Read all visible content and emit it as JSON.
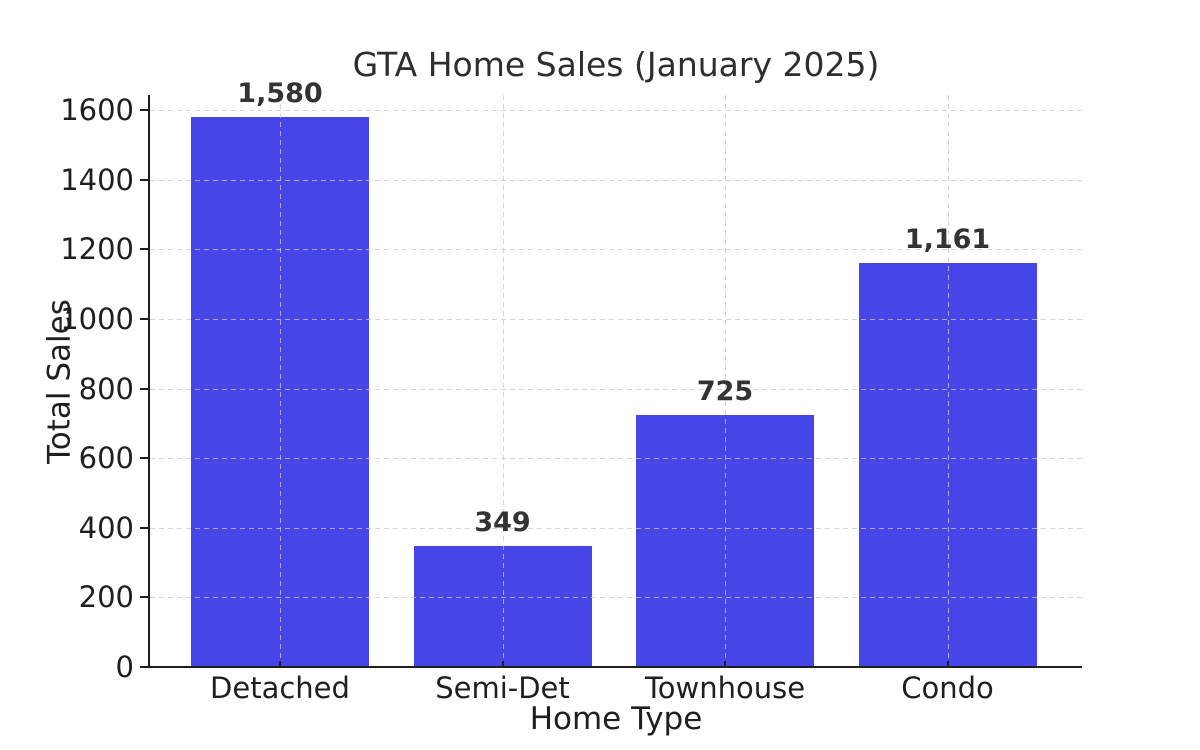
{
  "figure": {
    "background": "#ffffff"
  },
  "chart_data": {
    "type": "bar",
    "title": "GTA Home Sales (January 2025)",
    "xlabel": "Home Type",
    "ylabel": "Total Sales",
    "categories": [
      "Detached",
      "Semi-Det",
      "Townhouse",
      "Condo"
    ],
    "values": [
      1580,
      349,
      725,
      1161
    ],
    "bar_value_labels": [
      "1,580",
      "349",
      "725",
      "1,161"
    ],
    "ylim": [
      0,
      1600
    ],
    "yticks": [
      0,
      200,
      400,
      600,
      800,
      1000,
      1200,
      1400,
      1600
    ],
    "ytick_labels": [
      "0",
      "200",
      "400",
      "600",
      "800",
      "1000",
      "1200",
      "1400",
      "1600"
    ],
    "grid": "dashed-both-axes",
    "legend": "none",
    "colors": {
      "bar": "#4646e8",
      "grid": "#c8c8c8",
      "spine": "#1f1f1f",
      "tick_text": "#1f1f1f",
      "title_text": "#2e2e2e",
      "value_text": "#333333",
      "background": "#ffffff"
    }
  }
}
